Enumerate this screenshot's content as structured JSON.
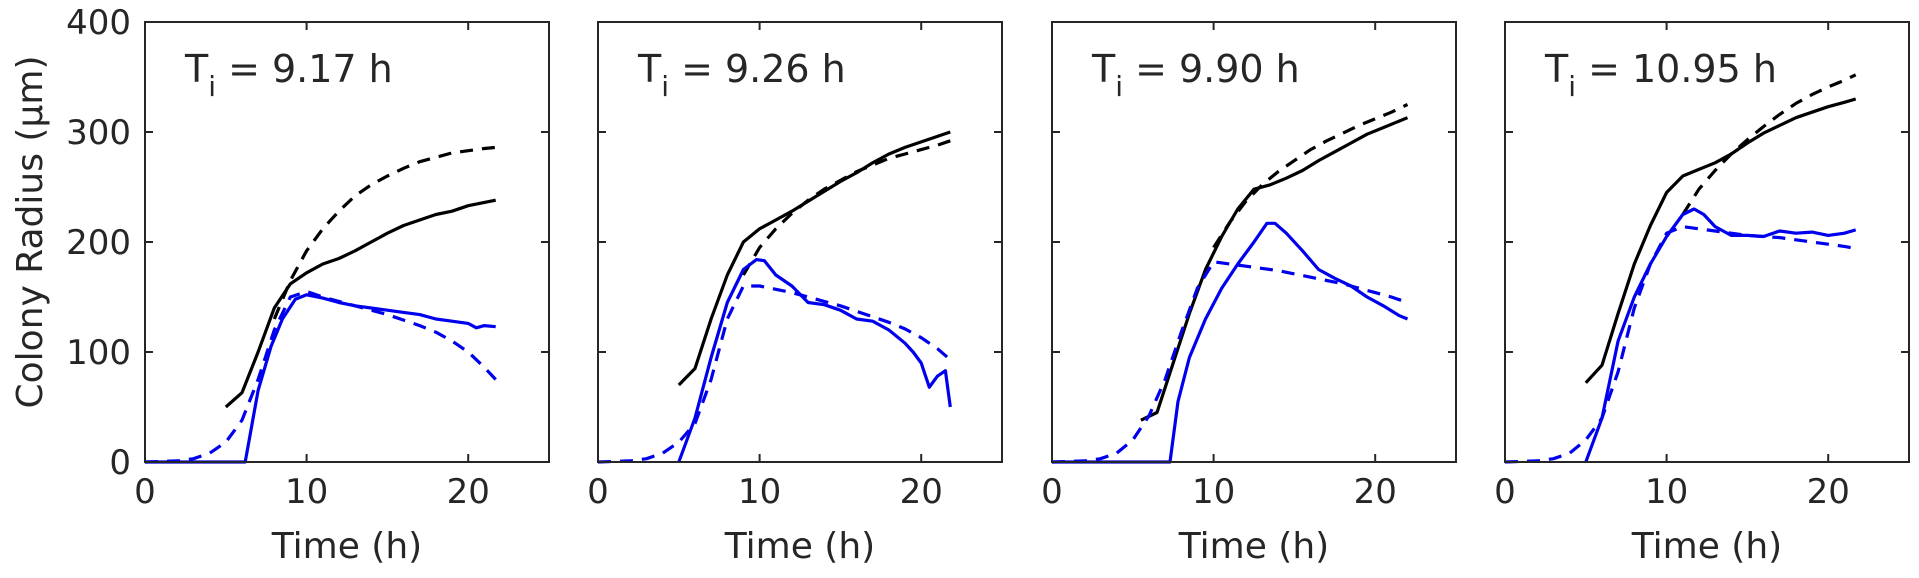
{
  "figure": {
    "ylabel": "Colony Radius (μm)"
  },
  "chart_data": [
    {
      "type": "line",
      "annotation": "T_i = 9.17 h",
      "annotation_main": "T",
      "annotation_sub": "i",
      "annotation_rest": " = 9.17 h",
      "xlabel": "Time (h)",
      "ylabel": "Colony Radius (μm)",
      "xlim": [
        0,
        25
      ],
      "ylim": [
        0,
        400
      ],
      "xticks": [
        0,
        10,
        20
      ],
      "yticks": [
        0,
        100,
        200,
        300,
        400
      ],
      "grid": false,
      "series": [
        {
          "color": "#000000",
          "dash": false,
          "x": [
            5,
            6,
            7,
            8,
            9,
            10,
            11,
            12,
            13,
            14,
            15,
            16,
            17,
            18,
            19,
            20,
            21,
            21.7
          ],
          "y": [
            50,
            63,
            100,
            140,
            162,
            172,
            180,
            185,
            192,
            200,
            208,
            215,
            220,
            225,
            228,
            233,
            236,
            238
          ]
        },
        {
          "color": "#000000",
          "dash": true,
          "x": [
            8,
            9,
            10,
            11,
            12,
            13,
            14,
            15,
            16,
            17,
            18,
            19,
            20,
            21,
            21.7
          ],
          "y": [
            130,
            165,
            192,
            212,
            228,
            242,
            252,
            260,
            267,
            273,
            277,
            281,
            283,
            285,
            286
          ]
        },
        {
          "color": "#0000ee",
          "dash": false,
          "x": [
            0,
            6.2,
            7,
            7.8,
            8.5,
            9.3,
            10,
            11,
            12,
            13,
            14,
            15,
            16,
            17,
            18,
            19,
            20,
            20.5,
            21,
            21.7
          ],
          "y": [
            0,
            0,
            65,
            105,
            130,
            148,
            152,
            149,
            145,
            142,
            140,
            138,
            136,
            134,
            130,
            128,
            126,
            122,
            124,
            123
          ]
        },
        {
          "color": "#0000ee",
          "dash": true,
          "x": [
            0,
            2,
            3,
            4,
            5,
            6,
            7,
            8,
            9,
            10,
            11,
            12,
            13,
            14,
            15,
            16,
            17,
            18,
            19,
            20,
            21,
            21.7
          ],
          "y": [
            0,
            1,
            3,
            8,
            18,
            38,
            75,
            120,
            150,
            155,
            150,
            146,
            142,
            138,
            134,
            129,
            124,
            118,
            110,
            100,
            86,
            75
          ]
        }
      ]
    },
    {
      "type": "line",
      "annotation": "T_i = 9.26 h",
      "annotation_main": "T",
      "annotation_sub": "i",
      "annotation_rest": " = 9.26 h",
      "xlabel": "Time (h)",
      "xlim": [
        0,
        25
      ],
      "ylim": [
        0,
        400
      ],
      "xticks": [
        0,
        10,
        20
      ],
      "grid": false,
      "series": [
        {
          "color": "#000000",
          "dash": false,
          "x": [
            5,
            6,
            7,
            8,
            9,
            10,
            11,
            12,
            13,
            14,
            15,
            16,
            17,
            18,
            19,
            20,
            21,
            21.8
          ],
          "y": [
            70,
            85,
            130,
            170,
            200,
            212,
            220,
            228,
            237,
            246,
            255,
            263,
            272,
            280,
            286,
            291,
            296,
            300
          ]
        },
        {
          "color": "#000000",
          "dash": true,
          "x": [
            9,
            10,
            11,
            12,
            13,
            14,
            15,
            16,
            17,
            18,
            19,
            20,
            21,
            21.8
          ],
          "y": [
            170,
            195,
            212,
            226,
            238,
            248,
            256,
            264,
            270,
            276,
            280,
            284,
            288,
            292
          ]
        },
        {
          "color": "#0000ee",
          "dash": false,
          "x": [
            5,
            6,
            7,
            8,
            9,
            9.8,
            10.3,
            11,
            12,
            13,
            14,
            15,
            16,
            17,
            18,
            19,
            19.5,
            20,
            20.5,
            21,
            21.5,
            21.8
          ],
          "y": [
            0,
            40,
            95,
            145,
            175,
            184,
            183,
            170,
            160,
            145,
            143,
            138,
            130,
            128,
            120,
            108,
            100,
            90,
            68,
            78,
            83,
            50
          ]
        },
        {
          "color": "#0000ee",
          "dash": true,
          "x": [
            0,
            2,
            3,
            4,
            5,
            6,
            7,
            8,
            9,
            10,
            11,
            12,
            13,
            14,
            15,
            16,
            17,
            18,
            19,
            20,
            21,
            21.8
          ],
          "y": [
            0,
            1,
            3,
            8,
            18,
            35,
            75,
            130,
            160,
            160,
            157,
            154,
            150,
            146,
            142,
            137,
            132,
            127,
            121,
            113,
            103,
            93
          ]
        }
      ]
    },
    {
      "type": "line",
      "annotation": "T_i = 9.90 h",
      "annotation_main": "T",
      "annotation_sub": "i",
      "annotation_rest": " = 9.90 h",
      "xlabel": "Time (h)",
      "xlim": [
        0,
        25
      ],
      "ylim": [
        0,
        400
      ],
      "xticks": [
        0,
        10,
        20
      ],
      "grid": false,
      "series": [
        {
          "color": "#000000",
          "dash": false,
          "x": [
            5.5,
            6.5,
            7.5,
            8.5,
            9.5,
            10.5,
            11.5,
            12.5,
            13.5,
            14.5,
            15.5,
            16.5,
            17.5,
            18.5,
            19.5,
            20.5,
            21.5,
            22
          ],
          "y": [
            38,
            45,
            90,
            135,
            175,
            205,
            230,
            248,
            252,
            258,
            265,
            274,
            282,
            290,
            298,
            304,
            310,
            313
          ]
        },
        {
          "color": "#000000",
          "dash": true,
          "x": [
            10,
            11,
            12,
            13,
            14,
            15,
            16,
            17,
            18,
            19,
            20,
            21,
            22
          ],
          "y": [
            195,
            218,
            237,
            252,
            264,
            274,
            284,
            292,
            299,
            306,
            312,
            318,
            325
          ]
        },
        {
          "color": "#0000ee",
          "dash": false,
          "x": [
            0,
            7.3,
            7.8,
            8.5,
            9.5,
            10.5,
            11.5,
            12.5,
            13.3,
            13.8,
            14.5,
            15.5,
            16.5,
            17.5,
            18.5,
            19.5,
            20.5,
            21.5,
            22
          ],
          "y": [
            0,
            0,
            55,
            95,
            130,
            158,
            180,
            200,
            217,
            217,
            208,
            192,
            175,
            167,
            160,
            150,
            142,
            133,
            130
          ]
        },
        {
          "color": "#0000ee",
          "dash": true,
          "x": [
            0,
            2,
            3,
            4,
            5,
            6,
            7,
            8,
            9,
            10,
            11,
            12,
            13,
            14,
            15,
            16,
            17,
            18,
            19,
            20,
            21,
            22
          ],
          "y": [
            0,
            1,
            3,
            8,
            20,
            42,
            75,
            118,
            158,
            182,
            180,
            178,
            176,
            174,
            171,
            168,
            165,
            162,
            158,
            154,
            150,
            145
          ]
        }
      ]
    },
    {
      "type": "line",
      "annotation": "T_i = 10.95 h",
      "annotation_main": "T",
      "annotation_sub": "i",
      "annotation_rest": " = 10.95 h",
      "xlabel": "Time (h)",
      "xlim": [
        0,
        25
      ],
      "ylim": [
        0,
        400
      ],
      "xticks": [
        0,
        10,
        20
      ],
      "grid": false,
      "series": [
        {
          "color": "#000000",
          "dash": false,
          "x": [
            5,
            6,
            7,
            8,
            9,
            10,
            11,
            12,
            13,
            14,
            15,
            16,
            17,
            18,
            19,
            20,
            21,
            21.7
          ],
          "y": [
            72,
            88,
            135,
            180,
            215,
            245,
            260,
            266,
            272,
            280,
            290,
            299,
            306,
            313,
            318,
            323,
            327,
            330
          ]
        },
        {
          "color": "#000000",
          "dash": true,
          "x": [
            11,
            12,
            13,
            14,
            15,
            16,
            17,
            18,
            19,
            20,
            21,
            21.7
          ],
          "y": [
            225,
            248,
            265,
            280,
            293,
            305,
            316,
            326,
            334,
            341,
            347,
            352
          ]
        },
        {
          "color": "#0000ee",
          "dash": false,
          "x": [
            5,
            6,
            7,
            8,
            9,
            10,
            11,
            11.7,
            12.3,
            13,
            14,
            15,
            16,
            17,
            18,
            19,
            20,
            21,
            21.7
          ],
          "y": [
            0,
            40,
            110,
            150,
            180,
            205,
            225,
            230,
            225,
            214,
            206,
            206,
            205,
            210,
            208,
            209,
            206,
            208,
            211
          ]
        },
        {
          "color": "#0000ee",
          "dash": true,
          "x": [
            0,
            2,
            3,
            4,
            5,
            6,
            7,
            8,
            9,
            10,
            11,
            12,
            13,
            14,
            15,
            16,
            17,
            18,
            19,
            20,
            21,
            21.7
          ],
          "y": [
            0,
            1,
            3,
            8,
            20,
            40,
            82,
            140,
            180,
            208,
            214,
            212,
            210,
            208,
            206,
            205,
            204,
            202,
            200,
            198,
            196,
            194
          ]
        }
      ]
    }
  ]
}
